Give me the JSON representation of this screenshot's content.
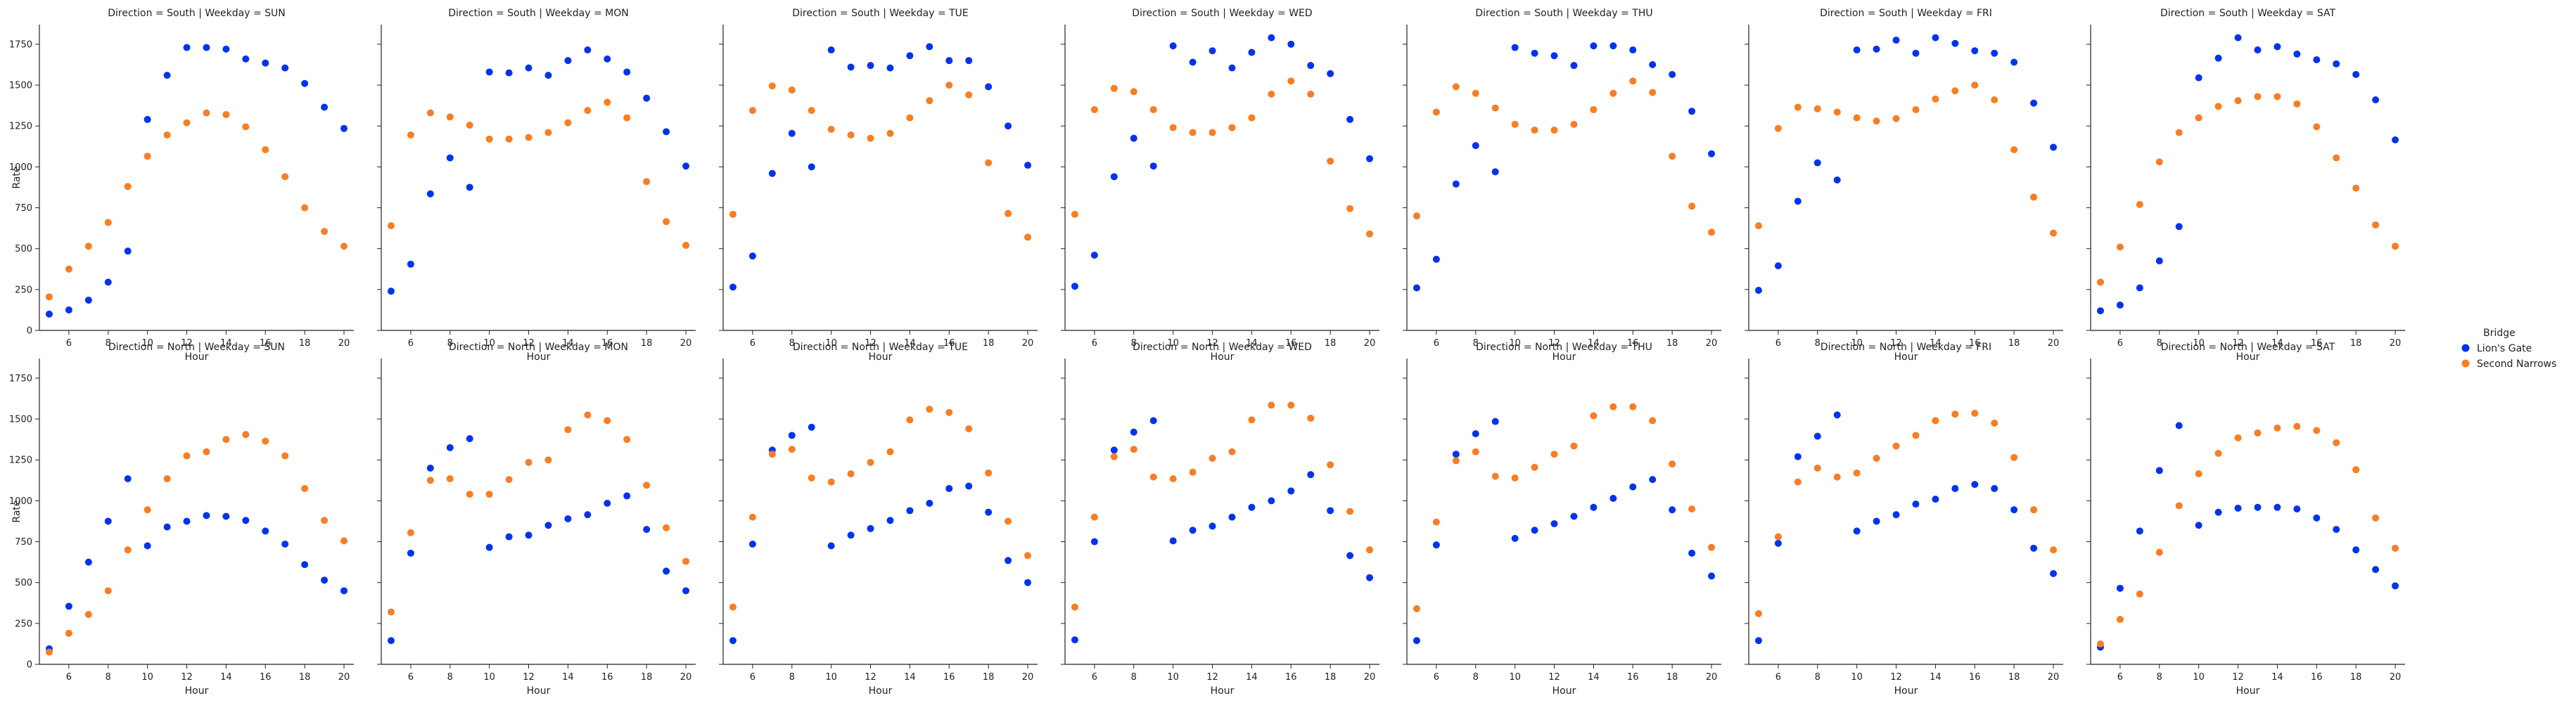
{
  "chart_data": {
    "type": "scatter",
    "layout": "facet-grid 2 rows x 7 columns",
    "row_facet": "Direction",
    "col_facet": "Weekday",
    "rows": [
      "South",
      "North"
    ],
    "cols": [
      "SUN",
      "MON",
      "TUE",
      "WED",
      "THU",
      "FRI",
      "SAT"
    ],
    "xlabel": "Hour",
    "ylabel": "Rate",
    "xlim": [
      4.5,
      20.5
    ],
    "ylim": [
      0,
      1870
    ],
    "xticks": [
      6,
      8,
      10,
      12,
      14,
      16,
      18,
      20
    ],
    "yticks": [
      0,
      250,
      500,
      750,
      1000,
      1250,
      1500,
      1750
    ],
    "grid": false,
    "legend": {
      "title": "Bridge",
      "placement": "right",
      "entries": [
        {
          "name": "Lion's Gate",
          "color": "#0033ee"
        },
        {
          "name": "Second Narrows",
          "color": "#f97d23"
        }
      ]
    },
    "x": [
      5,
      6,
      7,
      8,
      9,
      10,
      11,
      12,
      13,
      14,
      15,
      16,
      17,
      18,
      19,
      20
    ],
    "facets": [
      {
        "direction": "South",
        "weekday": "SUN",
        "title": "Direction = South | Weekday = SUN",
        "series": [
          {
            "name": "Lion's Gate",
            "values": [
              100,
              125,
              185,
              295,
              485,
              1290,
              1560,
              1730,
              1730,
              1720,
              1660,
              1635,
              1605,
              1510,
              1365,
              1235
            ]
          },
          {
            "name": "Second Narrows",
            "values": [
              205,
              375,
              515,
              660,
              880,
              1065,
              1195,
              1270,
              1330,
              1320,
              1245,
              1105,
              940,
              750,
              605,
              515
            ]
          }
        ]
      },
      {
        "direction": "South",
        "weekday": "MON",
        "title": "Direction = South | Weekday = MON",
        "series": [
          {
            "name": "Lion's Gate",
            "values": [
              240,
              405,
              835,
              1055,
              875,
              1580,
              1575,
              1605,
              1560,
              1650,
              1715,
              1660,
              1580,
              1420,
              1215,
              1005
            ]
          },
          {
            "name": "Second Narrows",
            "values": [
              640,
              1195,
              1330,
              1305,
              1255,
              1170,
              1170,
              1180,
              1210,
              1270,
              1345,
              1395,
              1300,
              910,
              665,
              520
            ]
          }
        ]
      },
      {
        "direction": "South",
        "weekday": "TUE",
        "title": "Direction = South | Weekday = TUE",
        "series": [
          {
            "name": "Lion's Gate",
            "values": [
              265,
              455,
              960,
              1205,
              1000,
              1715,
              1610,
              1620,
              1605,
              1680,
              1735,
              1650,
              1650,
              1490,
              1250,
              1010
            ]
          },
          {
            "name": "Second Narrows",
            "values": [
              710,
              1345,
              1495,
              1470,
              1345,
              1230,
              1195,
              1175,
              1205,
              1300,
              1405,
              1500,
              1440,
              1025,
              715,
              570
            ]
          }
        ]
      },
      {
        "direction": "South",
        "weekday": "WED",
        "title": "Direction = South | Weekday = WED",
        "series": [
          {
            "name": "Lion's Gate",
            "values": [
              270,
              460,
              940,
              1175,
              1005,
              1740,
              1640,
              1710,
              1605,
              1700,
              1790,
              1750,
              1620,
              1570,
              1290,
              1050
            ]
          },
          {
            "name": "Second Narrows",
            "values": [
              710,
              1350,
              1480,
              1460,
              1350,
              1240,
              1210,
              1210,
              1240,
              1300,
              1445,
              1525,
              1445,
              1035,
              745,
              590
            ]
          }
        ]
      },
      {
        "direction": "South",
        "weekday": "THU",
        "title": "Direction = South | Weekday = THU",
        "series": [
          {
            "name": "Lion's Gate",
            "values": [
              260,
              435,
              895,
              1130,
              970,
              1730,
              1695,
              1680,
              1620,
              1740,
              1740,
              1715,
              1625,
              1565,
              1340,
              1080
            ]
          },
          {
            "name": "Second Narrows",
            "values": [
              700,
              1335,
              1490,
              1450,
              1360,
              1260,
              1225,
              1225,
              1260,
              1350,
              1450,
              1525,
              1455,
              1065,
              760,
              600
            ]
          }
        ]
      },
      {
        "direction": "South",
        "weekday": "FRI",
        "title": "Direction = South | Weekday = FRI",
        "series": [
          {
            "name": "Lion's Gate",
            "values": [
              245,
              395,
              790,
              1025,
              920,
              1715,
              1720,
              1775,
              1695,
              1790,
              1755,
              1710,
              1695,
              1640,
              1390,
              1120
            ]
          },
          {
            "name": "Second Narrows",
            "values": [
              640,
              1235,
              1365,
              1355,
              1335,
              1300,
              1280,
              1295,
              1350,
              1415,
              1465,
              1500,
              1410,
              1105,
              815,
              595
            ]
          }
        ]
      },
      {
        "direction": "South",
        "weekday": "SAT",
        "title": "Direction = South | Weekday = SAT",
        "series": [
          {
            "name": "Lion's Gate",
            "values": [
              120,
              155,
              260,
              425,
              635,
              1545,
              1665,
              1790,
              1715,
              1735,
              1690,
              1655,
              1630,
              1565,
              1410,
              1165
            ]
          },
          {
            "name": "Second Narrows",
            "values": [
              295,
              510,
              770,
              1030,
              1210,
              1300,
              1370,
              1405,
              1430,
              1430,
              1385,
              1245,
              1055,
              870,
              645,
              515
            ]
          }
        ]
      },
      {
        "direction": "North",
        "weekday": "SUN",
        "title": "Direction = North | Weekday = SUN",
        "series": [
          {
            "name": "Lion's Gate",
            "values": [
              95,
              355,
              625,
              875,
              1135,
              725,
              840,
              875,
              910,
              905,
              880,
              815,
              735,
              610,
              515,
              450
            ]
          },
          {
            "name": "Second Narrows",
            "values": [
              75,
              190,
              305,
              450,
              700,
              945,
              1135,
              1275,
              1300,
              1375,
              1405,
              1365,
              1275,
              1075,
              880,
              755
            ]
          }
        ]
      },
      {
        "direction": "North",
        "weekday": "MON",
        "title": "Direction = North | Weekday = MON",
        "series": [
          {
            "name": "Lion's Gate",
            "values": [
              145,
              680,
              1200,
              1325,
              1380,
              715,
              780,
              790,
              850,
              890,
              915,
              985,
              1030,
              825,
              570,
              450
            ]
          },
          {
            "name": "Second Narrows",
            "values": [
              320,
              805,
              1125,
              1135,
              1040,
              1040,
              1130,
              1235,
              1250,
              1435,
              1525,
              1490,
              1375,
              1095,
              835,
              630
            ]
          }
        ]
      },
      {
        "direction": "North",
        "weekday": "TUE",
        "title": "Direction = North | Weekday = TUE",
        "series": [
          {
            "name": "Lion's Gate",
            "values": [
              145,
              735,
              1310,
              1400,
              1450,
              725,
              790,
              830,
              880,
              940,
              985,
              1075,
              1090,
              930,
              635,
              500
            ]
          },
          {
            "name": "Second Narrows",
            "values": [
              350,
              900,
              1285,
              1315,
              1140,
              1115,
              1165,
              1235,
              1300,
              1495,
              1560,
              1540,
              1440,
              1170,
              875,
              665
            ]
          }
        ]
      },
      {
        "direction": "North",
        "weekday": "WED",
        "title": "Direction = North | Weekday = WED",
        "series": [
          {
            "name": "Lion's Gate",
            "values": [
              150,
              750,
              1310,
              1420,
              1490,
              755,
              820,
              845,
              900,
              960,
              1000,
              1060,
              1160,
              940,
              665,
              530
            ]
          },
          {
            "name": "Second Narrows",
            "values": [
              350,
              900,
              1270,
              1315,
              1145,
              1135,
              1175,
              1260,
              1300,
              1495,
              1585,
              1585,
              1505,
              1220,
              935,
              700
            ]
          }
        ]
      },
      {
        "direction": "North",
        "weekday": "THU",
        "title": "Direction = North | Weekday = THU",
        "series": [
          {
            "name": "Lion's Gate",
            "values": [
              145,
              730,
              1285,
              1410,
              1485,
              770,
              820,
              860,
              905,
              960,
              1015,
              1085,
              1130,
              945,
              680,
              540
            ]
          },
          {
            "name": "Second Narrows",
            "values": [
              340,
              870,
              1245,
              1300,
              1150,
              1140,
              1205,
              1285,
              1335,
              1520,
              1575,
              1575,
              1490,
              1225,
              950,
              715
            ]
          }
        ]
      },
      {
        "direction": "North",
        "weekday": "FRI",
        "title": "Direction = North | Weekday = FRI",
        "series": [
          {
            "name": "Lion's Gate",
            "values": [
              145,
              740,
              1270,
              1395,
              1525,
              815,
              875,
              915,
              980,
              1010,
              1075,
              1100,
              1075,
              945,
              710,
              555
            ]
          },
          {
            "name": "Second Narrows",
            "values": [
              310,
              780,
              1115,
              1200,
              1145,
              1170,
              1260,
              1335,
              1400,
              1490,
              1530,
              1535,
              1475,
              1265,
              945,
              700
            ]
          }
        ]
      },
      {
        "direction": "North",
        "weekday": "SAT",
        "title": "Direction = North | Weekday = SAT",
        "series": [
          {
            "name": "Lion's Gate",
            "values": [
              105,
              465,
              815,
              1185,
              1460,
              850,
              930,
              955,
              960,
              960,
              950,
              895,
              825,
              700,
              580,
              480
            ]
          },
          {
            "name": "Second Narrows",
            "values": [
              125,
              275,
              430,
              685,
              970,
              1165,
              1290,
              1385,
              1415,
              1445,
              1455,
              1430,
              1355,
              1190,
              895,
              710
            ]
          }
        ]
      }
    ]
  }
}
